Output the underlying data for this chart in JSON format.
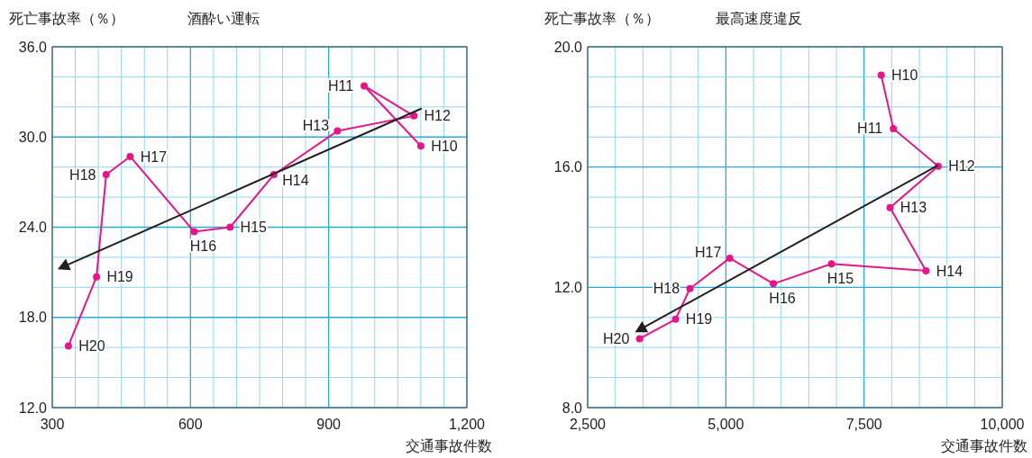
{
  "chart_data": [
    {
      "type": "line",
      "title": "酒酔い運転",
      "ylabel": "死亡事故率（％）",
      "xlabel": "交通事故件数",
      "marker": "circle",
      "grid": true,
      "xlim": [
        300,
        1200
      ],
      "ylim": [
        12,
        36
      ],
      "xticks": [
        300,
        {
          "value": 350,
          "label": null
        },
        {
          "value": 400,
          "label": null
        },
        {
          "value": 450,
          "label": null
        },
        {
          "value": 500,
          "label": null
        },
        {
          "value": 550,
          "label": null
        },
        600,
        {
          "value": 650,
          "label": null
        },
        {
          "value": 700,
          "label": null
        },
        {
          "value": 750,
          "label": null
        },
        {
          "value": 800,
          "label": null
        },
        {
          "value": 850,
          "label": null
        },
        900,
        {
          "value": 950,
          "label": null
        },
        {
          "value": 1000,
          "label": null
        },
        {
          "value": 1050,
          "label": null
        },
        {
          "value": 1100,
          "label": null
        },
        {
          "value": 1150,
          "label": null
        },
        {
          "value": 1200,
          "label": "1,200"
        }
      ],
      "yticks": [
        {
          "value": 12,
          "label": "12.0"
        },
        {
          "value": 14,
          "label": null
        },
        {
          "value": 16,
          "label": null
        },
        {
          "value": 18,
          "label": "18.0"
        },
        {
          "value": 20,
          "label": null
        },
        {
          "value": 22,
          "label": null
        },
        {
          "value": 24,
          "label": "24.0"
        },
        {
          "value": 26,
          "label": null
        },
        {
          "value": 28,
          "label": null
        },
        {
          "value": 30,
          "label": "30.0"
        },
        {
          "value": 32,
          "label": null
        },
        {
          "value": 34,
          "label": null
        },
        {
          "value": 36,
          "label": "36.0"
        }
      ],
      "series": [
        {
          "color": "#e6168a",
          "x": [
            1100,
            977,
            1085,
            919,
            781,
            686,
            608,
            469,
            417,
            396,
            335
          ],
          "values": [
            29.4,
            33.4,
            31.4,
            30.4,
            27.5,
            24.0,
            23.7,
            28.7,
            27.5,
            20.7,
            16.1
          ]
        },
        {
          "type": "line",
          "color": "#231f20",
          "marker": "triangle",
          "x": [
            1102,
            326
          ],
          "values": [
            31.9,
            21.4
          ]
        }
      ],
      "annotations": [
        {
          "text": "H10",
          "x": 1100,
          "y": 29.4
        },
        {
          "text": "H11",
          "x": 977,
          "y": 33.4
        },
        {
          "text": "H12",
          "x": 1085,
          "y": 31.4
        },
        {
          "text": "H13",
          "x": 919,
          "y": 30.4
        },
        {
          "text": "H14",
          "x": 781,
          "y": 27.5
        },
        {
          "text": "H15",
          "x": 686,
          "y": 24.0
        },
        {
          "text": "H16",
          "x": 608,
          "y": 23.7
        },
        {
          "text": "H17",
          "x": 469,
          "y": 28.7
        },
        {
          "text": "H18",
          "x": 417,
          "y": 27.5
        },
        {
          "text": "H19",
          "x": 396,
          "y": 20.7
        },
        {
          "text": "H20",
          "x": 335,
          "y": 16.1
        }
      ]
    },
    {
      "type": "line",
      "title": "最高速度違反",
      "ylabel": "死亡事故率（％）",
      "xlabel": "交通事故件数",
      "marker": "circle",
      "grid": true,
      "xlim": [
        2500,
        10000
      ],
      "ylim": [
        8,
        20
      ],
      "xticks": [
        {
          "value": 2500,
          "label": "2,500"
        },
        {
          "value": 3000,
          "label": null
        },
        {
          "value": 3500,
          "label": null
        },
        {
          "value": 4000,
          "label": null
        },
        {
          "value": 4500,
          "label": null
        },
        {
          "value": 5000,
          "label": "5,000"
        },
        {
          "value": 5500,
          "label": null
        },
        {
          "value": 6000,
          "label": null
        },
        {
          "value": 6500,
          "label": null
        },
        {
          "value": 7000,
          "label": null
        },
        {
          "value": 7500,
          "label": "7,500"
        },
        {
          "value": 8000,
          "label": null
        },
        {
          "value": 8500,
          "label": null
        },
        {
          "value": 9000,
          "label": null
        },
        {
          "value": 9500,
          "label": null
        },
        {
          "value": 10000,
          "label": "10,000"
        }
      ],
      "yticks": [
        {
          "value": 8,
          "label": "8.0"
        },
        {
          "value": 9,
          "label": null
        },
        {
          "value": 10,
          "label": null
        },
        {
          "value": 11,
          "label": null
        },
        {
          "value": 12,
          "label": "12.0"
        },
        {
          "value": 13,
          "label": null
        },
        {
          "value": 14,
          "label": null
        },
        {
          "value": 15,
          "label": null
        },
        {
          "value": 16,
          "label": "16.0"
        },
        {
          "value": 17,
          "label": null
        },
        {
          "value": 18,
          "label": null
        },
        {
          "value": 19,
          "label": null
        },
        {
          "value": 20,
          "label": "20.0"
        }
      ],
      "series": [
        {
          "color": "#e6168a",
          "x": [
            7810,
            8030,
            8840,
            7970,
            8620,
            6910,
            5860,
            5070,
            4350,
            4090,
            3440
          ],
          "values": [
            19.06,
            17.28,
            16.03,
            14.65,
            12.55,
            12.78,
            12.12,
            12.97,
            11.96,
            10.94,
            10.29
          ]
        },
        {
          "type": "line",
          "color": "#231f20",
          "marker": "triangle",
          "x": [
            8840,
            3470
          ],
          "values": [
            16.06,
            10.62
          ]
        }
      ],
      "annotations": [
        {
          "text": "H10",
          "x": 7810,
          "y": 19.06
        },
        {
          "text": "H11",
          "x": 8030,
          "y": 17.28
        },
        {
          "text": "H12",
          "x": 8840,
          "y": 16.03
        },
        {
          "text": "H13",
          "x": 7970,
          "y": 14.65
        },
        {
          "text": "H14",
          "x": 8620,
          "y": 12.55
        },
        {
          "text": "H15",
          "x": 6910,
          "y": 12.78
        },
        {
          "text": "H16",
          "x": 5860,
          "y": 12.12
        },
        {
          "text": "H17",
          "x": 5070,
          "y": 12.97
        },
        {
          "text": "H18",
          "x": 4350,
          "y": 11.96
        },
        {
          "text": "H19",
          "x": 4090,
          "y": 10.94
        },
        {
          "text": "H20",
          "x": 3440,
          "y": 10.29
        }
      ]
    }
  ]
}
